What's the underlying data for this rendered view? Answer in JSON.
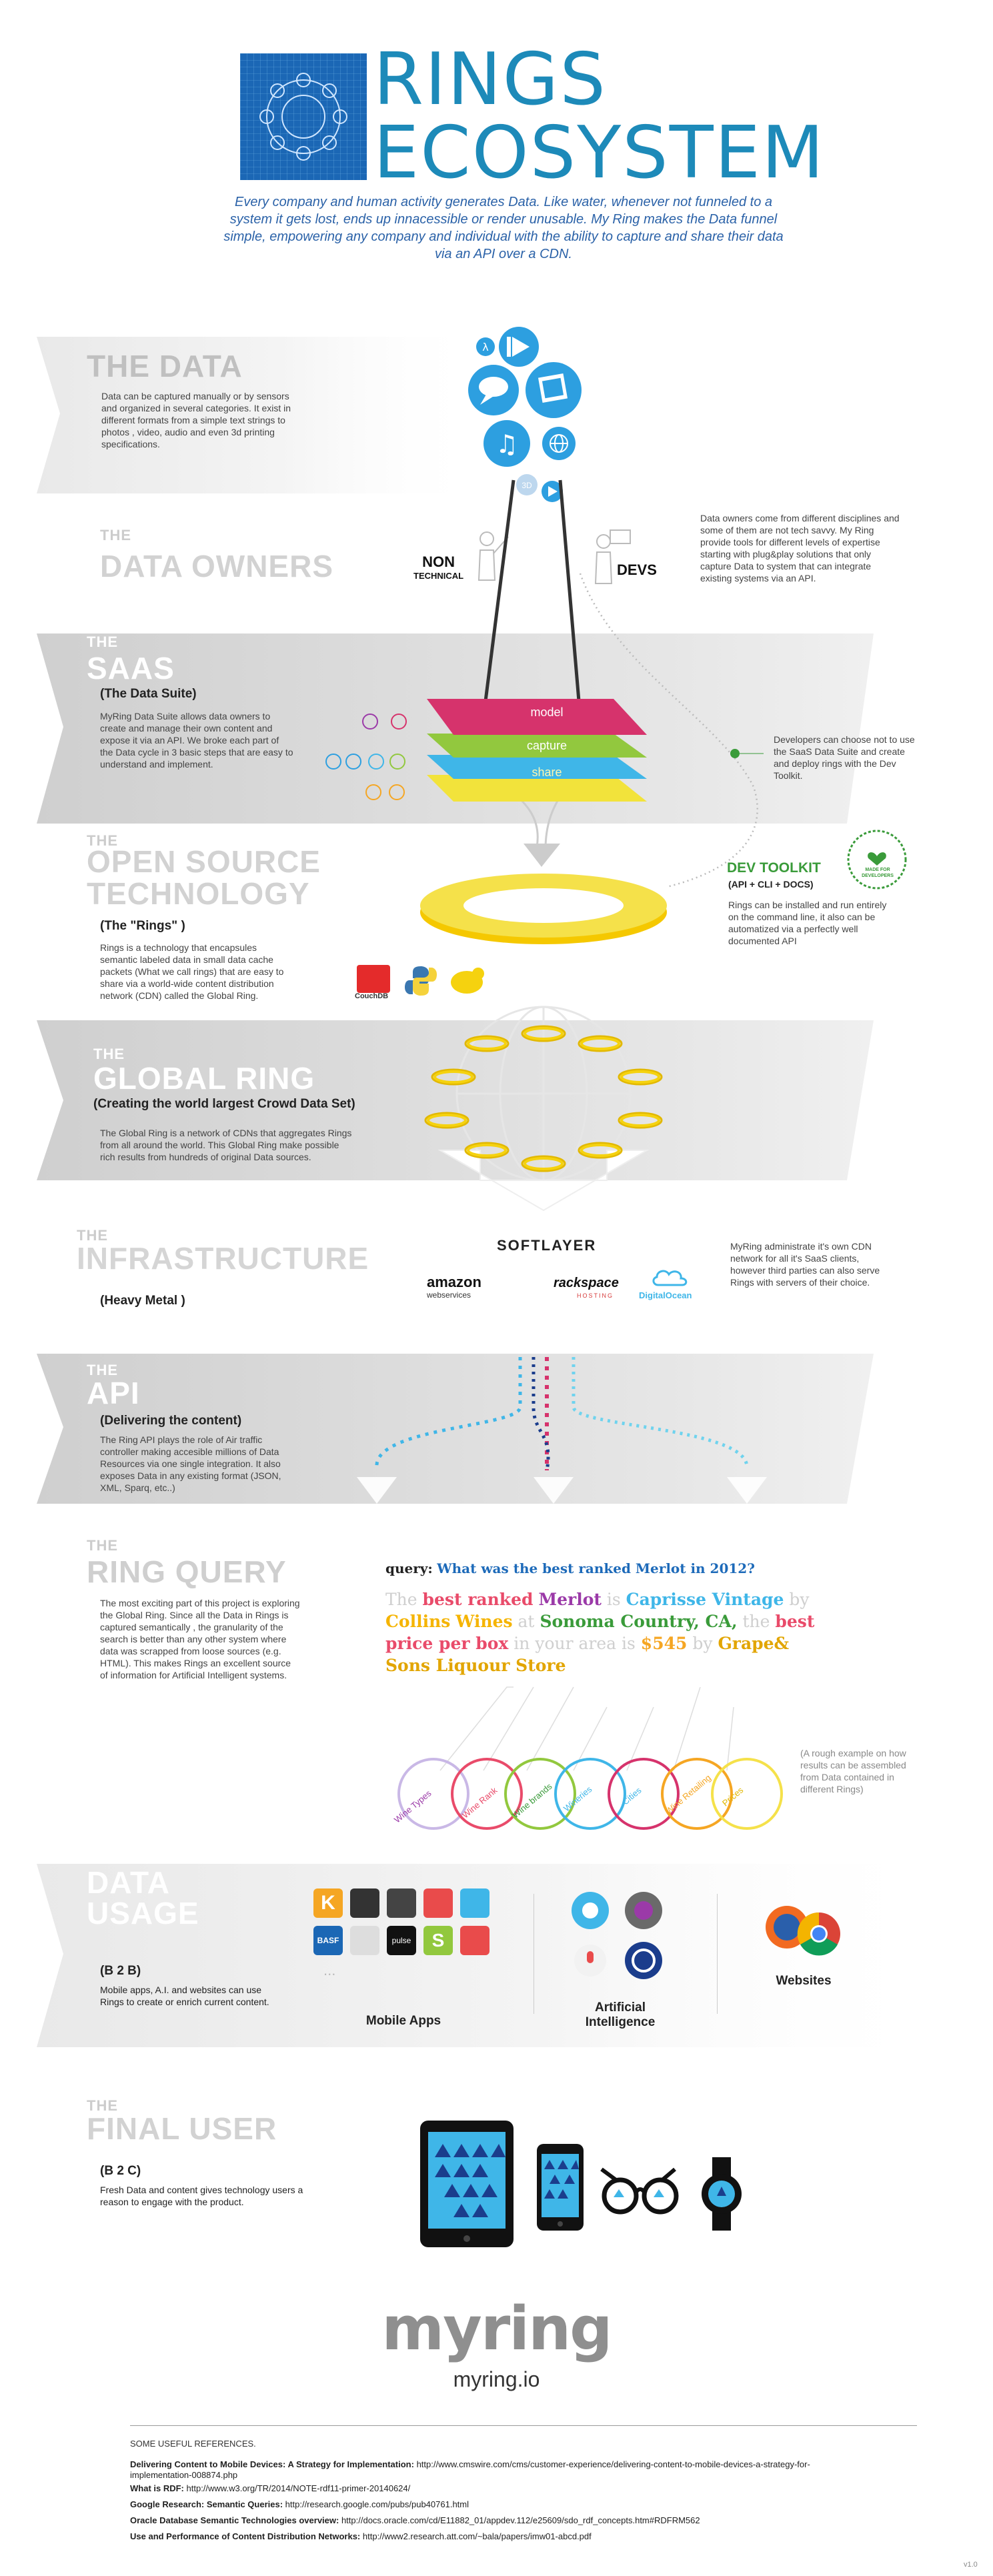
{
  "header": {
    "title_line1": "RINGS",
    "title_line2": "ECOSYSTEM",
    "intro": "Every company and human activity generates Data.  Like water,  whenever not funneled to a system it gets lost, ends up innacessible or render unusable. My Ring makes the Data funnel simple, empowering any company and individual with the ability to capture and share their data via an API over a CDN."
  },
  "the_data": {
    "title": "THE DATA",
    "body": "Data can be captured manually or by sensors and organized in several categories. It exist in different formats from a simple text strings to photos , video, audio and even 3d printing specifications."
  },
  "data_owners": {
    "kicker": "THE",
    "title": "DATA OWNERS",
    "non": "NON",
    "technical": "TECHNICAL",
    "devs": "DEVS",
    "body": "Data owners come from different disciplines and some of them are not tech savvy. My Ring provide tools for different levels of expertise starting with plug&play solutions that only capture Data to system that can integrate existing systems via an API."
  },
  "saas": {
    "kicker": "THE",
    "title": "SAAS",
    "subtitle": "(The Data Suite)",
    "body": "MyRing Data Suite allows data owners to create and manage their own content and expose it via an API. We broke each part of the Data cycle in 3 basic steps that are easy to understand and implement.",
    "layers": [
      "model",
      "capture",
      "share"
    ],
    "dev_note": "Developers can choose not to use the SaaS Data Suite and create and deploy rings with the Dev Toolkit."
  },
  "open_source": {
    "kicker": "THE",
    "title_line1": "OPEN SOURCE",
    "title_line2": "TECHNOLOGY",
    "subtitle": "(The \"Rings\" )",
    "body": "Rings is a technology that encapsules semantic labeled data in small data cache packets (What we call rings) that are easy to share via a world-wide content distribution network (CDN) called the Global Ring.",
    "couchdb": "CouchDB",
    "dev_toolkit": "DEV TOOLKIT",
    "dev_toolkit_sub": "(API + CLI + DOCS)",
    "dev_toolkit_body": "Rings can be installed and run entirely on the command line, it also can be automatized via a perfectly well documented API",
    "badge": "MADE FOR DEVELOPERS"
  },
  "global_ring": {
    "kicker": "THE",
    "title": "GLOBAL RING",
    "subtitle": "(Creating the world largest Crowd Data Set)",
    "body": "The Global Ring is a network of CDNs that aggregates Rings from all around the world. This Global Ring make possible rich results from hundreds of original Data sources."
  },
  "infrastructure": {
    "kicker": "THE",
    "title": "INFRASTRUCTURE",
    "subtitle": "(Heavy Metal )",
    "softlayer": "SOFTLAYER",
    "amazon": "amazon",
    "amazon_sub": "webservices",
    "rackspace": "rackspace",
    "rackspace_sub": "HOSTING",
    "digitalocean": "DigitalOcean",
    "body": "MyRing administrate it's own CDN network for all it's SaaS clients, however third parties can also serve Rings with servers of their choice."
  },
  "api": {
    "kicker": "THE",
    "title": "API",
    "subtitle": "(Delivering the content)",
    "body": "The Ring API plays the role of Air traffic controller making accesible millions of Data Resources via one single integration. It also exposes Data in any existing format (JSON, XML, Sparq, etc..)"
  },
  "ring_query": {
    "kicker": "THE",
    "title": "RING QUERY",
    "body": "The most exciting part of this project is exploring the Global Ring. Since all the Data in Rings is captured semantically , the granularity of the search is better than any other system where data was scrapped from loose sources (e.g. HTML). This makes Rings an excellent source of information for Artificial Intelligent systems.",
    "query_label": "query:",
    "query_text": "What was the best ranked Merlot in 2012?",
    "answer": {
      "w1": "The",
      "w2": "best ranked",
      "w3": "Merlot",
      "w4": "is",
      "w5": "Caprisse Vintage",
      "w6": "by",
      "w7": "Collins",
      "w8": "Wines",
      "w9": "at",
      "w10": "Sonoma Country, CA,",
      "w11": "the",
      "w12": "best price per box",
      "w13": "in",
      "w14": "your area is",
      "w15": "$545",
      "w16": "by",
      "w17": "Grape& Sons Liquour Store"
    },
    "ring_labels": [
      "Wine Types",
      "Wine Rank",
      "Wine brands",
      "Wineries",
      "Cities",
      "Wine Retailing",
      "Prices"
    ],
    "note": "(A rough example on how results can be assembled from Data contained in different Rings)"
  },
  "data_usage": {
    "kicker": "DATA",
    "title": "USAGE",
    "subtitle": "(B 2 B)",
    "body": "Mobile apps, A.I. and websites can use Rings to create or enrich current content.",
    "mobile_apps": "Mobile Apps",
    "ai_line1": "Artificial",
    "ai_line2": "Intelligence",
    "websites": "Websites",
    "dots": "...",
    "app_k": "K",
    "app_basf": "BASF",
    "app_pulse": "pulse",
    "app_s": "S"
  },
  "final_user": {
    "kicker": "THE",
    "title": "FINAL USER",
    "subtitle": "(B 2 C)",
    "body": "Fresh Data and content gives technology users a reason to engage with the product."
  },
  "brand": {
    "logo": "myring",
    "url": "myring.io"
  },
  "references": {
    "heading": "SOME  USEFUL REFERENCES.",
    "items": [
      {
        "name": "Delivering Content to Mobile Devices: A Strategy for Implementation:",
        "url": "http://www.cmswire.com/cms/customer-experience/delivering-content-to-mobile-devices-a-strategy-for-implementation-008874.php"
      },
      {
        "name": "What is RDF:",
        "url": "http://www.w3.org/TR/2014/NOTE-rdf11-primer-20140624/"
      },
      {
        "name": "Google Research: Semantic Queries:",
        "url": "http://research.google.com/pubs/pub40761.html"
      },
      {
        "name": "Oracle Database Semantic Technologies overview:",
        "url": "http://docs.oracle.com/cd/E11882_01/appdev.112/e25609/sdo_rdf_concepts.htm#RDFRM562"
      },
      {
        "name": "Use and Performance of Content Distribution Networks:",
        "url": "http://www2.research.att.com/~bala/papers/imw01-abcd.pdf"
      }
    ],
    "version": "v1.0"
  },
  "colors": {
    "brand_blue": "#1d8ab9",
    "model": "#d6336c",
    "capture": "#3fb6e8",
    "share": "#f2e33b",
    "ring_gold": "#f5d20f",
    "band_grey": "#d9d9d9"
  }
}
